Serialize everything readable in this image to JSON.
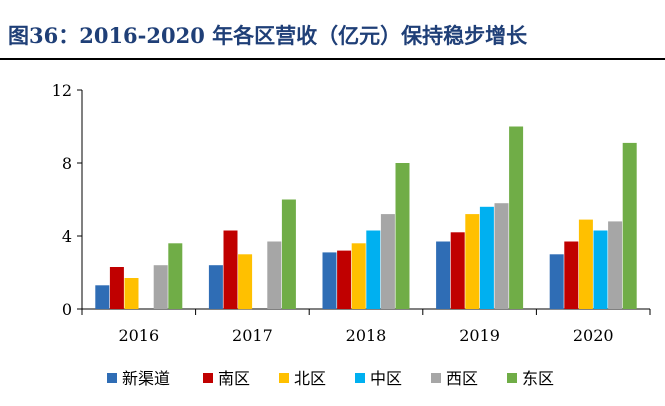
{
  "title": "图36：2016-2020 年各区营收（亿元）保持稳步增长",
  "chart_data": {
    "type": "bar",
    "categories": [
      "2016",
      "2017",
      "2018",
      "2019",
      "2020"
    ],
    "series": [
      {
        "name": "新渠道",
        "color": "#2f6db5",
        "values": [
          1.3,
          2.4,
          3.1,
          3.7,
          3.0
        ]
      },
      {
        "name": "南区",
        "color": "#c00000",
        "values": [
          2.3,
          4.3,
          3.2,
          4.2,
          3.7
        ]
      },
      {
        "name": "北区",
        "color": "#ffc000",
        "values": [
          1.7,
          3.0,
          3.6,
          5.2,
          4.9
        ]
      },
      {
        "name": "中区",
        "color": "#00b0f0",
        "values": [
          0,
          0,
          4.3,
          5.6,
          4.3
        ]
      },
      {
        "name": "西区",
        "color": "#a6a6a6",
        "values": [
          2.4,
          3.7,
          5.2,
          5.8,
          4.8
        ]
      },
      {
        "name": "东区",
        "color": "#70ad47",
        "values": [
          3.6,
          6.0,
          8.0,
          10.0,
          9.1
        ]
      }
    ],
    "yticks": [
      0,
      4,
      8,
      12
    ],
    "ylim": [
      0,
      12
    ],
    "legend_position": "bottom",
    "grid": false
  }
}
